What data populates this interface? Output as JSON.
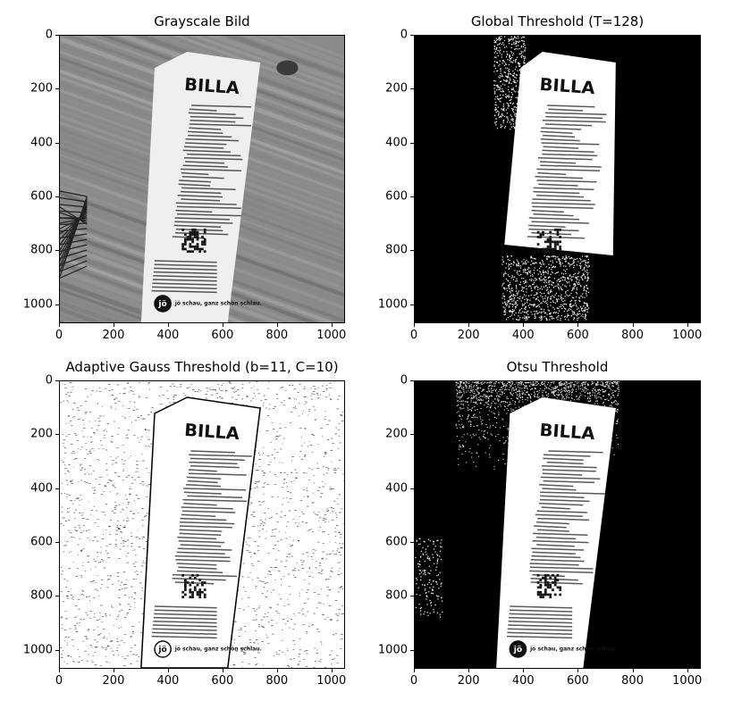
{
  "chart_data": [
    {
      "type": "image",
      "title": "Grayscale Bild",
      "xlim": [
        0,
        1050
      ],
      "ylim": [
        1070,
        0
      ],
      "xticks": [
        0,
        200,
        400,
        600,
        800,
        1000
      ],
      "yticks": [
        0,
        200,
        400,
        600,
        800,
        1000
      ],
      "style": "grayscale",
      "receipt_text": "BILLA",
      "logo_text": "jö",
      "footer_text": "jö schau, ganz schön schlau."
    },
    {
      "type": "image",
      "title": "Global Threshold (T=128)",
      "xlim": [
        0,
        1050
      ],
      "ylim": [
        1070,
        0
      ],
      "xticks": [
        0,
        200,
        400,
        600,
        800,
        1000
      ],
      "yticks": [
        0,
        200,
        400,
        600,
        800,
        1000
      ],
      "style": "global",
      "receipt_text": "BILLA"
    },
    {
      "type": "image",
      "title": "Adaptive Gauss Threshold (b=11, C=10)",
      "xlim": [
        0,
        1050
      ],
      "ylim": [
        1070,
        0
      ],
      "xticks": [
        0,
        200,
        400,
        600,
        800,
        1000
      ],
      "yticks": [
        0,
        200,
        400,
        600,
        800,
        1000
      ],
      "style": "adaptive",
      "receipt_text": "BILLA",
      "logo_text": "jö",
      "footer_text": "jö schau, ganz schön schlau."
    },
    {
      "type": "image",
      "title": "Otsu Threshold",
      "xlim": [
        0,
        1050
      ],
      "ylim": [
        1070,
        0
      ],
      "xticks": [
        0,
        200,
        400,
        600,
        800,
        1000
      ],
      "yticks": [
        0,
        200,
        400,
        600,
        800,
        1000
      ],
      "style": "otsu",
      "receipt_text": "BILLA",
      "logo_text": "jö",
      "footer_text": "jö schau, ganz schön schlau."
    }
  ]
}
